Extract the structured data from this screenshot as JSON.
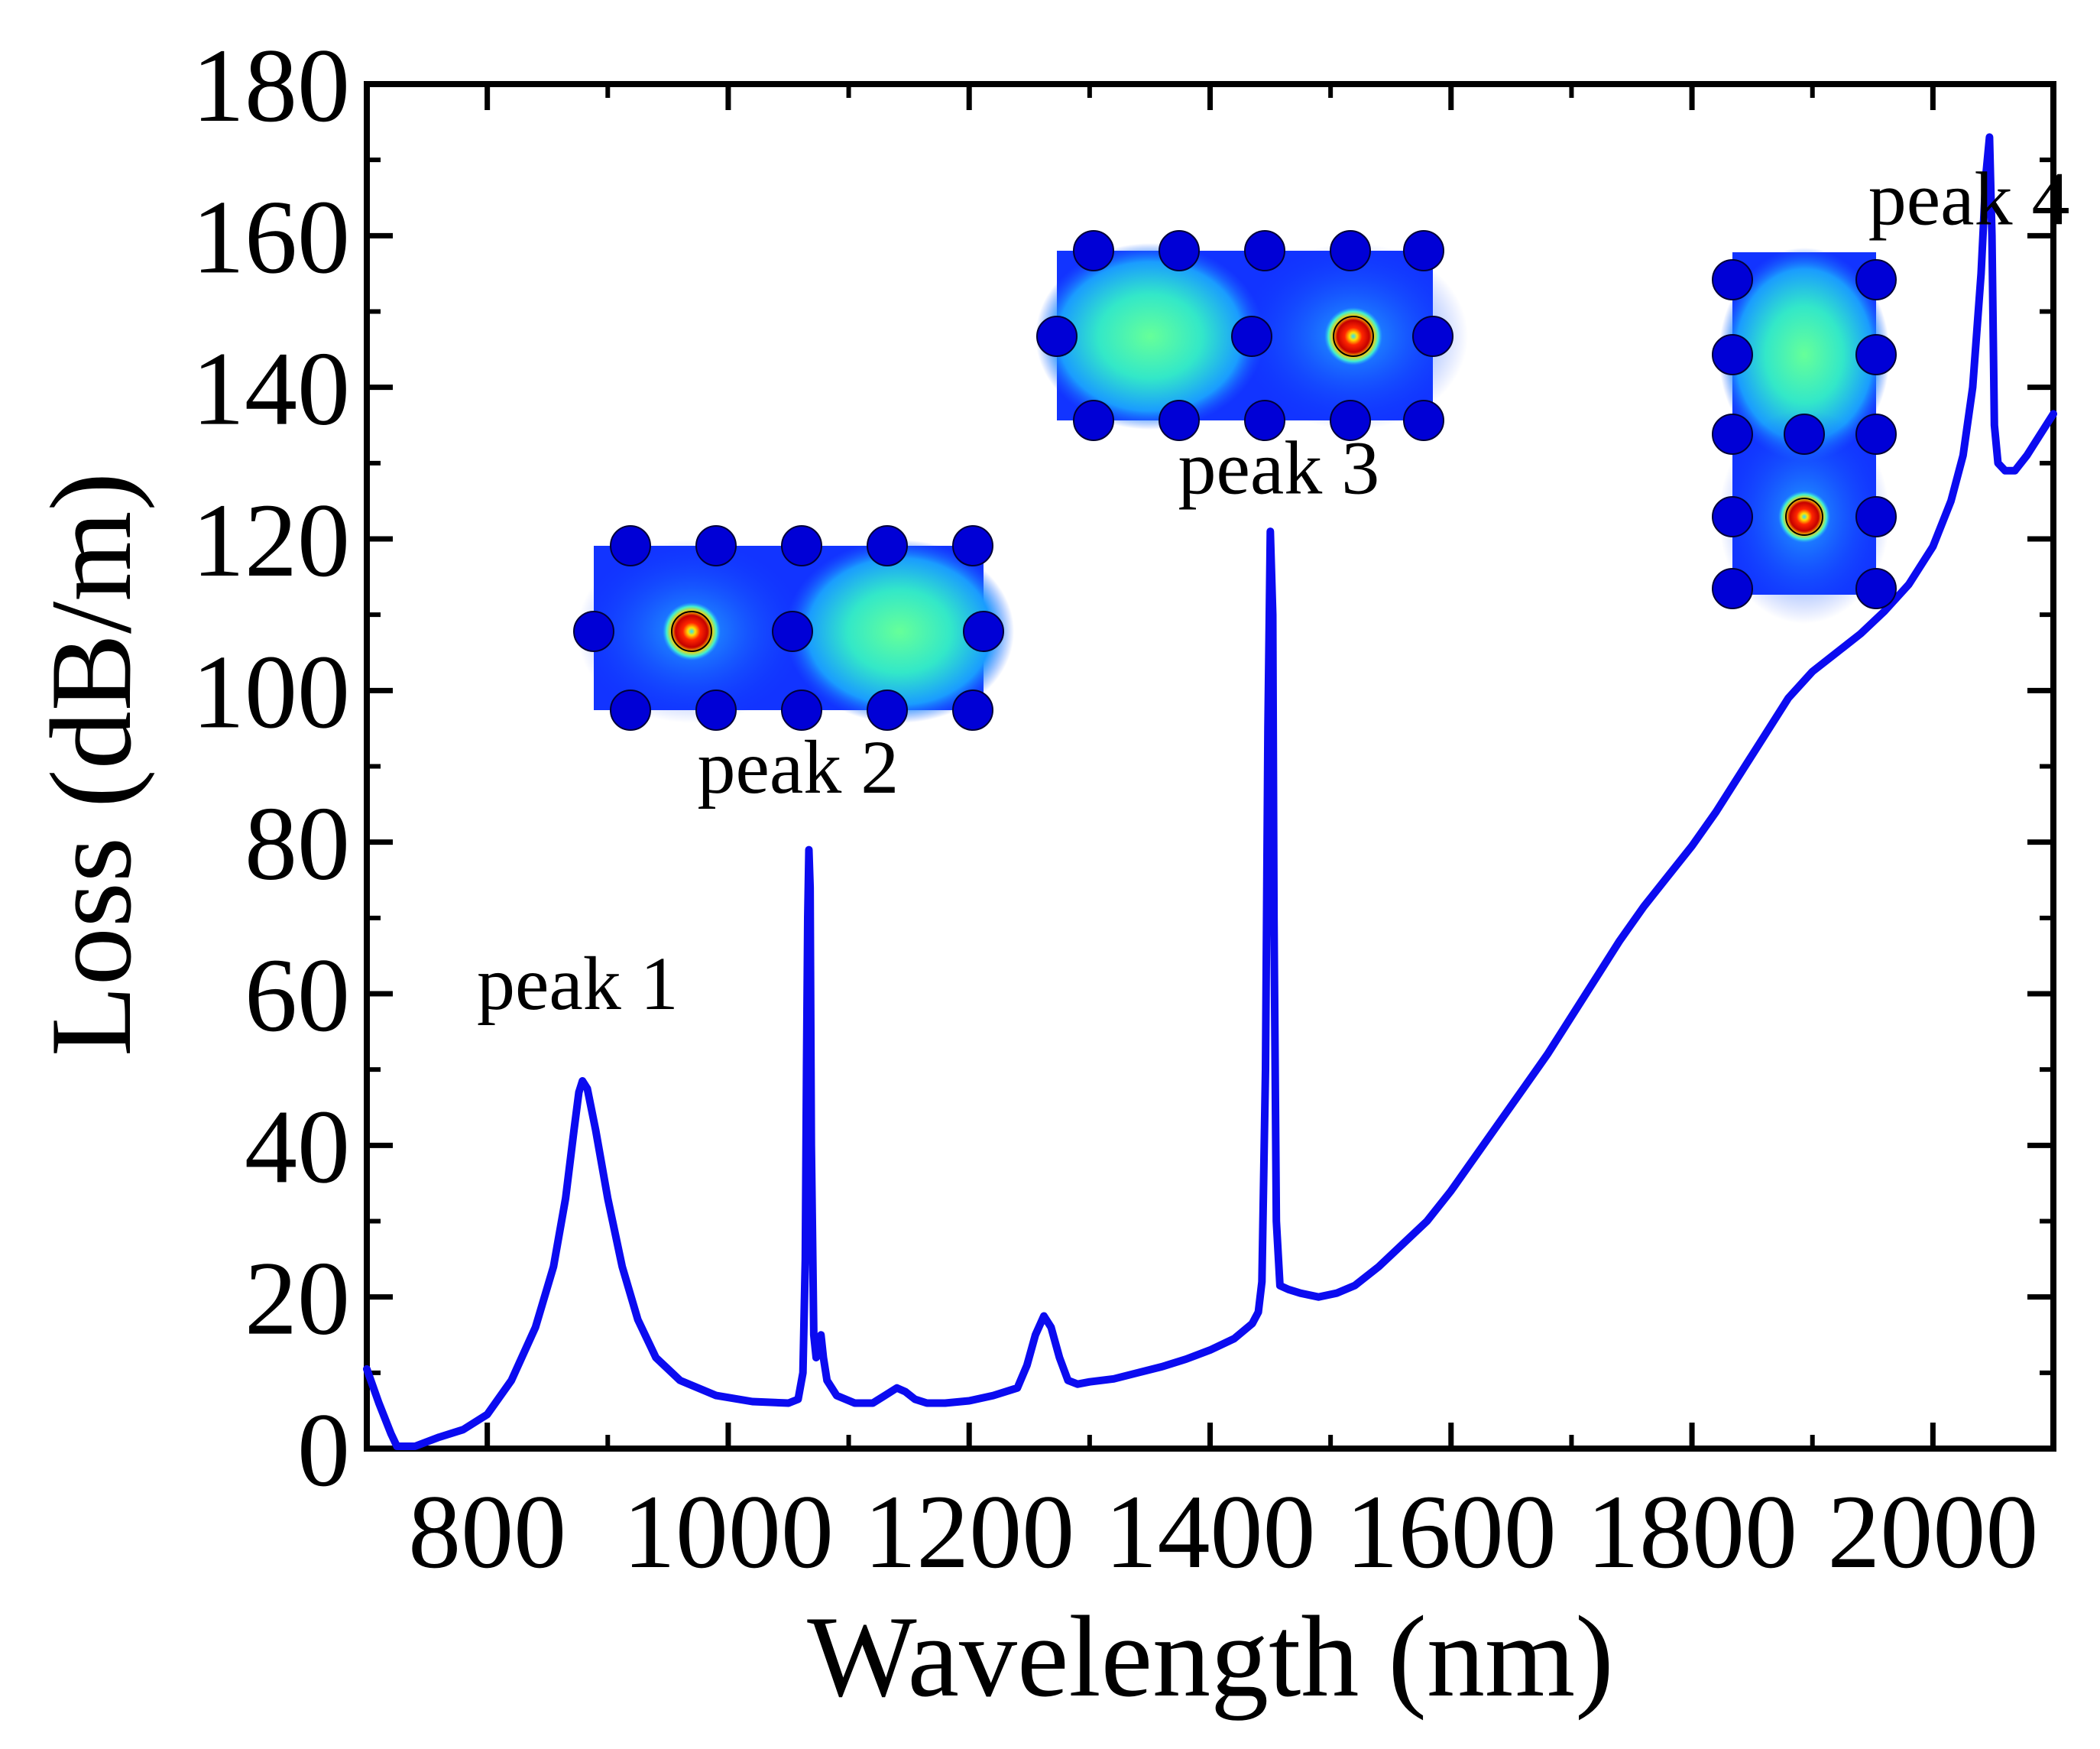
{
  "chart_data": {
    "type": "line",
    "title": "",
    "xlabel": "Wavelength (nm)",
    "ylabel": "Loss (dB/m)",
    "xlim": [
      700,
      2100
    ],
    "ylim": [
      0,
      180
    ],
    "x_ticks": [
      800,
      1000,
      1200,
      1400,
      1600,
      1800,
      2000
    ],
    "x_tick_labels": [
      "800",
      "1000",
      "1200",
      "1400",
      "1600",
      "1800",
      "2000"
    ],
    "y_ticks": [
      0,
      20,
      40,
      60,
      80,
      100,
      120,
      140,
      160,
      180
    ],
    "y_tick_labels": [
      "0",
      "20",
      "40",
      "60",
      "80",
      "100",
      "120",
      "140",
      "160",
      "180"
    ],
    "grid": false,
    "series": [
      {
        "name": "Loss",
        "color": "#0b0bf0",
        "points": [
          [
            700,
            10.5
          ],
          [
            710,
            6
          ],
          [
            720,
            2
          ],
          [
            725,
            0.3
          ],
          [
            740,
            0.3
          ],
          [
            760,
            1.5
          ],
          [
            780,
            2.5
          ],
          [
            800,
            4.5
          ],
          [
            820,
            9
          ],
          [
            840,
            16
          ],
          [
            855,
            24
          ],
          [
            865,
            33
          ],
          [
            872,
            42
          ],
          [
            876,
            47
          ],
          [
            879,
            48.5
          ],
          [
            883,
            47.5
          ],
          [
            890,
            42
          ],
          [
            900,
            33
          ],
          [
            912,
            24
          ],
          [
            925,
            17
          ],
          [
            940,
            12
          ],
          [
            960,
            9
          ],
          [
            990,
            7
          ],
          [
            1020,
            6.2
          ],
          [
            1050,
            6
          ],
          [
            1058,
            6.5
          ],
          [
            1062,
            10
          ],
          [
            1064,
            25
          ],
          [
            1065,
            50
          ],
          [
            1066,
            70
          ],
          [
            1067,
            79
          ],
          [
            1068,
            74
          ],
          [
            1069,
            40
          ],
          [
            1071,
            15
          ],
          [
            1073,
            12
          ],
          [
            1075,
            14
          ],
          [
            1077,
            15
          ],
          [
            1079,
            12
          ],
          [
            1082,
            9
          ],
          [
            1090,
            7
          ],
          [
            1105,
            6
          ],
          [
            1120,
            6
          ],
          [
            1130,
            7
          ],
          [
            1140,
            8
          ],
          [
            1147,
            7.5
          ],
          [
            1155,
            6.5
          ],
          [
            1165,
            6
          ],
          [
            1180,
            6
          ],
          [
            1200,
            6.3
          ],
          [
            1220,
            7
          ],
          [
            1240,
            8
          ],
          [
            1248,
            11
          ],
          [
            1255,
            15
          ],
          [
            1262,
            17.5
          ],
          [
            1268,
            16
          ],
          [
            1275,
            12
          ],
          [
            1282,
            9
          ],
          [
            1290,
            8.5
          ],
          [
            1300,
            8.8
          ],
          [
            1320,
            9.2
          ],
          [
            1340,
            10
          ],
          [
            1360,
            10.8
          ],
          [
            1380,
            11.8
          ],
          [
            1400,
            13
          ],
          [
            1420,
            14.5
          ],
          [
            1435,
            16.5
          ],
          [
            1440,
            18
          ],
          [
            1443,
            22
          ],
          [
            1446,
            50
          ],
          [
            1448,
            95
          ],
          [
            1450,
            121
          ],
          [
            1452,
            110
          ],
          [
            1453,
            70
          ],
          [
            1455,
            30
          ],
          [
            1458,
            21.5
          ],
          [
            1465,
            21
          ],
          [
            1475,
            20.5
          ],
          [
            1490,
            20
          ],
          [
            1505,
            20.5
          ],
          [
            1520,
            21.5
          ],
          [
            1540,
            24
          ],
          [
            1560,
            27
          ],
          [
            1580,
            30
          ],
          [
            1600,
            34
          ],
          [
            1620,
            38.5
          ],
          [
            1640,
            43
          ],
          [
            1660,
            47.5
          ],
          [
            1680,
            52
          ],
          [
            1700,
            57
          ],
          [
            1720,
            62
          ],
          [
            1740,
            67
          ],
          [
            1760,
            71.5
          ],
          [
            1780,
            75.5
          ],
          [
            1800,
            79.5
          ],
          [
            1820,
            84
          ],
          [
            1840,
            89
          ],
          [
            1860,
            94
          ],
          [
            1880,
            99
          ],
          [
            1900,
            102.5
          ],
          [
            1920,
            105
          ],
          [
            1940,
            107.5
          ],
          [
            1960,
            110.5
          ],
          [
            1980,
            114
          ],
          [
            2000,
            119
          ],
          [
            2015,
            125
          ],
          [
            2025,
            131
          ],
          [
            2033,
            140
          ],
          [
            2040,
            155
          ],
          [
            2044,
            168
          ],
          [
            2047,
            173
          ],
          [
            2049,
            160
          ],
          [
            2051,
            135
          ],
          [
            2054,
            130
          ],
          [
            2060,
            129
          ],
          [
            2068,
            129
          ],
          [
            2078,
            131
          ],
          [
            2090,
            134
          ],
          [
            2100,
            136.5
          ]
        ]
      }
    ],
    "annotations": [
      {
        "text": "peak 1",
        "x": 875,
        "y": 58
      },
      {
        "text": "peak 2",
        "x": 1058,
        "y": 86.5
      },
      {
        "text": "peak 3",
        "x": 1457,
        "y": 126
      },
      {
        "text": "peak 4",
        "x": 2030,
        "y": 161.5
      }
    ],
    "insets": [
      {
        "name": "peak 2 mode field",
        "bright_position": "left"
      },
      {
        "name": "peak 3 mode field",
        "bright_position": "right"
      },
      {
        "name": "peak 4 mode field",
        "bright_position": "bottom"
      }
    ]
  }
}
